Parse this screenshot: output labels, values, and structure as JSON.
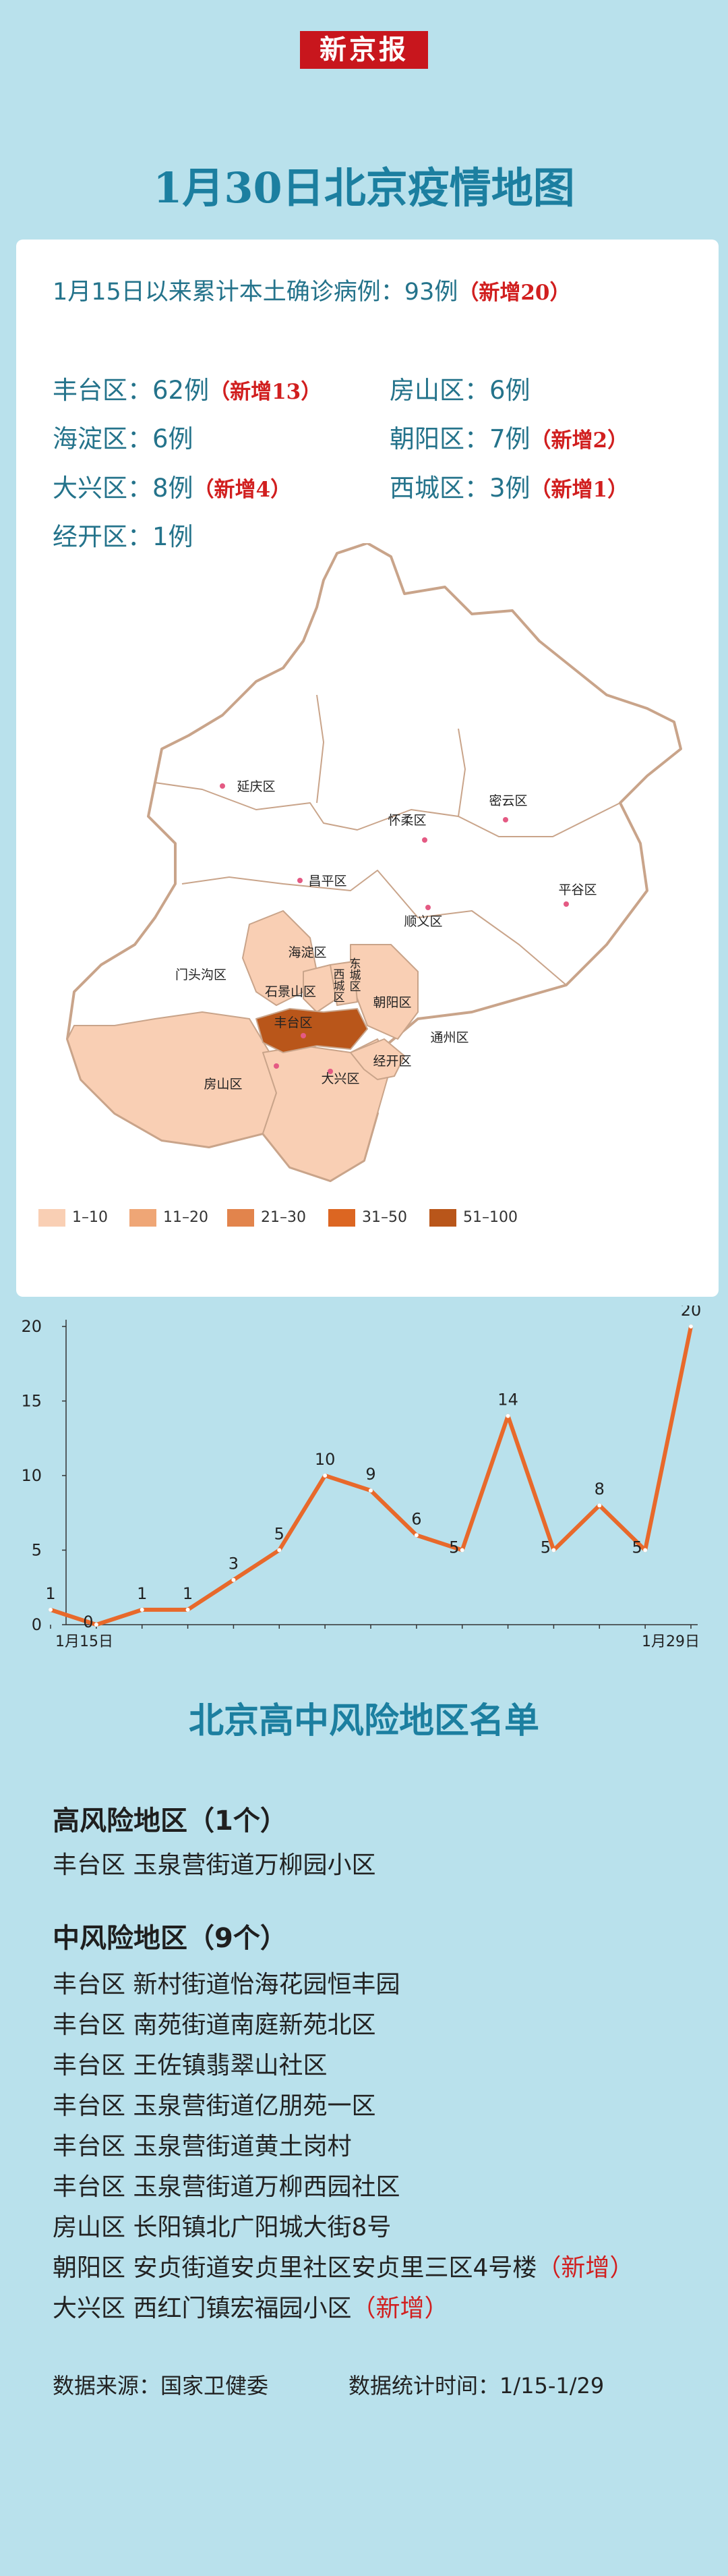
{
  "masthead": "新京报",
  "title": "1月30日北京疫情地图",
  "summary": {
    "label": "1月15日以来累计本土确诊病例：93例",
    "new": "（新增20）"
  },
  "districts": [
    {
      "name": "丰台区：62例",
      "new": "（新增13）"
    },
    {
      "name": "房山区：6例",
      "new": ""
    },
    {
      "name": "海淀区：6例",
      "new": ""
    },
    {
      "name": "朝阳区：7例",
      "new": "（新增2）"
    },
    {
      "name": "大兴区：8例",
      "new": "（新增4）"
    },
    {
      "name": "西城区：3例",
      "new": "（新增1）"
    },
    {
      "name": "经开区：1例",
      "new": ""
    }
  ],
  "map_labels": {
    "yanqing": "延庆区",
    "huairou": "怀柔区",
    "miyun": "密云区",
    "changping": "昌平区",
    "pinggu": "平谷区",
    "shunyi": "顺义区",
    "mentougou": "门头沟区",
    "haidian": "海淀区",
    "xicheng": "西城区",
    "dongcheng": "东城区",
    "shijingshan": "石景山区",
    "chaoyang": "朝阳区",
    "fengtai": "丰台区",
    "tongzhou": "通州区",
    "jingkai": "经开区",
    "fangshan": "房山区",
    "daxing": "大兴区"
  },
  "legend": [
    {
      "label": "1–10",
      "color": "#f9cfb4"
    },
    {
      "label": "11–20",
      "color": "#efa676"
    },
    {
      "label": "21–30",
      "color": "#e2844c"
    },
    {
      "label": "31–50",
      "color": "#dc6622"
    },
    {
      "label": "51–100",
      "color": "#b9561a"
    }
  ],
  "chart_data": {
    "type": "line",
    "x": [
      "1月15日",
      "1月16日",
      "1月17日",
      "1月18日",
      "1月19日",
      "1月20日",
      "1月21日",
      "1月22日",
      "1月23日",
      "1月24日",
      "1月25日",
      "1月26日",
      "1月27日",
      "1月28日",
      "1月29日"
    ],
    "series": [
      {
        "values": [
          1,
          0,
          1,
          1,
          3,
          5,
          10,
          9,
          6,
          5,
          14,
          5,
          8,
          5,
          20
        ]
      }
    ],
    "xtick_labels": [
      "1月15日",
      "1月29日"
    ],
    "yticks": [
      0,
      5,
      10,
      15,
      20
    ],
    "ylim": [
      0,
      20
    ],
    "color": "#e8692b"
  },
  "risk": {
    "title": "北京高中风险地区名单",
    "high": {
      "heading": "高风险地区（1个）",
      "items": [
        {
          "text": "丰台区 玉泉营街道万柳园小区",
          "new": ""
        }
      ]
    },
    "medium": {
      "heading": "中风险地区（9个）",
      "items": [
        {
          "text": "丰台区 新村街道怡海花园恒丰园",
          "new": ""
        },
        {
          "text": "丰台区 南苑街道南庭新苑北区",
          "new": ""
        },
        {
          "text": "丰台区 王佐镇翡翠山社区",
          "new": ""
        },
        {
          "text": "丰台区 玉泉营街道亿朋苑一区",
          "new": ""
        },
        {
          "text": "丰台区 玉泉营街道黄土岗村",
          "new": ""
        },
        {
          "text": "丰台区 玉泉营街道万柳西园社区",
          "new": ""
        },
        {
          "text": "房山区 长阳镇北广阳城大街8号",
          "new": ""
        },
        {
          "text": "朝阳区 安贞街道安贞里社区安贞里三区4号楼",
          "new": "（新增）"
        },
        {
          "text": "大兴区 西红门镇宏福园小区",
          "new": "（新增）"
        }
      ]
    }
  },
  "footer": {
    "source": "数据来源：国家卫健委",
    "period": "数据统计时间：1/15-1/29"
  }
}
